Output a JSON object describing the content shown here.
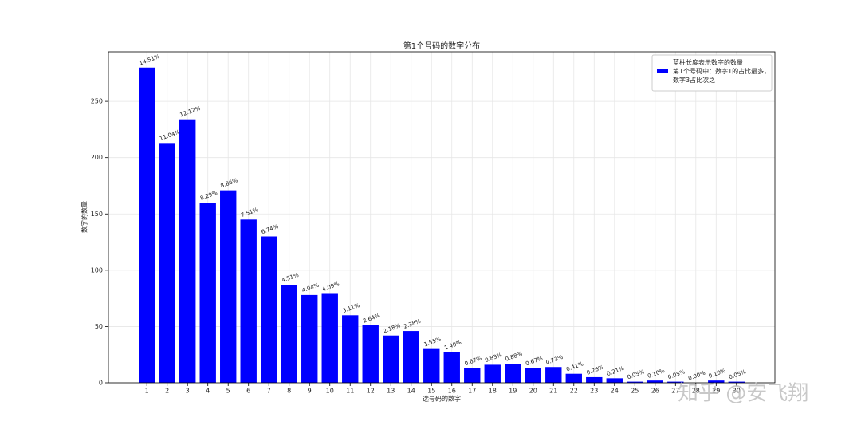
{
  "chart_data": {
    "type": "bar",
    "title": "第1个号码的数字分布",
    "x_label": "选号码的数字",
    "y_label": "数字的数量",
    "x": [
      1,
      2,
      3,
      4,
      5,
      6,
      7,
      8,
      9,
      10,
      11,
      12,
      13,
      14,
      15,
      16,
      17,
      18,
      19,
      20,
      21,
      22,
      23,
      24,
      25,
      26,
      27,
      28,
      29,
      30
    ],
    "series": [
      {
        "name": "蓝柱长度表示数字的数量\n第1个号码中：数字1的占比最多，\n数字3占比次之",
        "color": "#0000ff",
        "values": [
          280,
          213,
          234,
          160,
          171,
          145,
          130,
          87,
          78,
          79,
          60,
          51,
          42,
          46,
          30,
          27,
          13,
          16,
          17,
          13,
          14,
          8,
          5,
          4,
          1,
          2,
          1,
          0,
          2,
          1
        ],
        "value_labels": [
          "14.51%",
          "11.04%",
          "12.12%",
          "8.29%",
          "8.86%",
          "7.51%",
          "6.74%",
          "4.51%",
          "4.04%",
          "4.09%",
          "3.11%",
          "2.64%",
          "2.18%",
          "2.38%",
          "1.55%",
          "1.40%",
          "0.67%",
          "0.83%",
          "0.88%",
          "0.67%",
          "0.73%",
          "0.41%",
          "0.26%",
          "0.21%",
          "0.05%",
          "0.10%",
          "0.05%",
          "0.00%",
          "0.10%",
          "0.05%"
        ]
      }
    ],
    "xlim": [
      -0.89,
      31.89
    ],
    "xticks": [
      1,
      2,
      3,
      4,
      5,
      6,
      7,
      8,
      9,
      10,
      11,
      12,
      13,
      14,
      15,
      16,
      17,
      18,
      19,
      20,
      21,
      22,
      23,
      24,
      25,
      26,
      27,
      28,
      29,
      30
    ],
    "ylim": [
      0,
      294
    ],
    "yticks": [
      0,
      50,
      100,
      150,
      200,
      250
    ],
    "grid": true,
    "legend": "upper right",
    "watermark": "知乎 @安飞翔"
  }
}
